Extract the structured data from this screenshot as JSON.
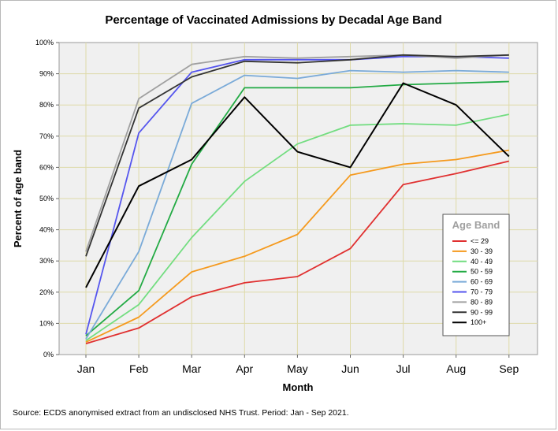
{
  "chart_data": {
    "type": "line",
    "title": "Percentage of Vaccinated Admissions by Decadal Age Band",
    "xlabel": "Month",
    "ylabel": "Percent of age band",
    "categories": [
      "Jan",
      "Feb",
      "Mar",
      "Apr",
      "May",
      "Jun",
      "Jul",
      "Aug",
      "Sep"
    ],
    "yticks": [
      "0%",
      "10%",
      "20%",
      "30%",
      "40%",
      "50%",
      "60%",
      "70%",
      "80%",
      "90%",
      "100%"
    ],
    "ylim": [
      0,
      100
    ],
    "grid": true,
    "legend_title": "Age Band",
    "legend_position": "right",
    "series": [
      {
        "name": "<= 29",
        "color": "#e03030",
        "values": [
          3.5,
          8.5,
          18.5,
          23,
          25,
          34,
          54.5,
          58,
          62
        ]
      },
      {
        "name": "30 - 39",
        "color": "#f59a1e",
        "values": [
          4,
          12,
          26.5,
          31.5,
          38.5,
          57.5,
          61,
          62.5,
          65.5
        ]
      },
      {
        "name": "40 - 49",
        "color": "#72dd80",
        "values": [
          4.5,
          16,
          37.5,
          55.5,
          67.5,
          73.5,
          74,
          73.5,
          77
        ]
      },
      {
        "name": "50 - 59",
        "color": "#22aa44",
        "values": [
          6,
          20.5,
          61,
          85.5,
          85.5,
          85.5,
          86.5,
          87,
          87.5
        ]
      },
      {
        "name": "60 - 69",
        "color": "#7aaad8",
        "values": [
          5,
          33,
          80.5,
          89.5,
          88.5,
          91,
          90.5,
          91,
          90.5
        ]
      },
      {
        "name": "70 - 79",
        "color": "#5555ee",
        "values": [
          6.5,
          71,
          90.5,
          94.5,
          94.5,
          94.5,
          95.5,
          95.5,
          95
        ]
      },
      {
        "name": "80 - 89",
        "color": "#a0a0a0",
        "values": [
          33,
          82,
          93,
          95.5,
          95,
          95.5,
          96,
          95,
          96
        ]
      },
      {
        "name": "90 - 99",
        "color": "#333333",
        "values": [
          31.5,
          79,
          89,
          94,
          93.5,
          94.5,
          96,
          95.5,
          96
        ]
      },
      {
        "name": "100+",
        "color": "#000000",
        "values": [
          21.5,
          54,
          62.5,
          82.5,
          65,
          60,
          87,
          80,
          63.5
        ]
      }
    ],
    "source": "Source: ECDS anonymised extract from an undisclosed NHS Trust. Period: Jan - Sep 2021."
  }
}
